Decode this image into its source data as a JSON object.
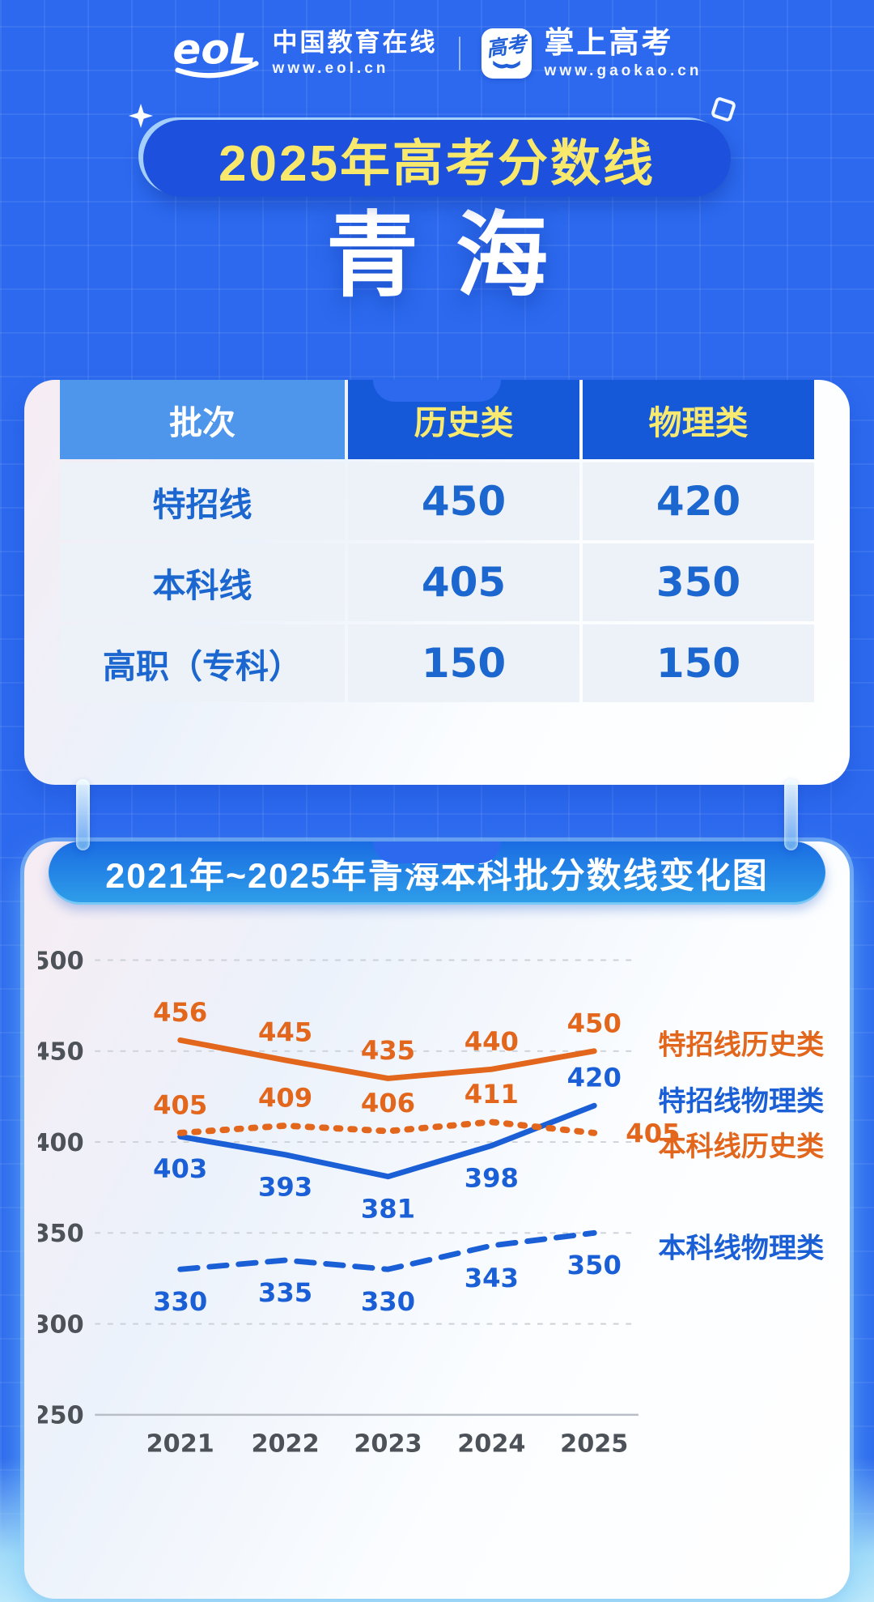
{
  "colors": {
    "page_bg": "#2c69ee",
    "banner_bg": "#1d50dc",
    "banner_text": "#f8e96d",
    "header_col_bg": "#1558d8",
    "header_col1_bg": "#4e95ec",
    "header_text_yellow": "#f8ea70",
    "cell_bg": "#edf2f9",
    "value_blue": "#1b66cf",
    "orange": "#e2661c",
    "blue": "#1a5fd6"
  },
  "header": {
    "eol": {
      "logo_text": "eoL",
      "name": "中国教育在线",
      "url": "www.eol.cn"
    },
    "gaokao": {
      "icon_text": "高考",
      "name": "掌上高考",
      "url": "www.gaokao.cn"
    }
  },
  "title_banner": {
    "text": "2025年高考分数线"
  },
  "province": {
    "text": "青海"
  },
  "score_table": {
    "columns": [
      "批次",
      "历史类",
      "物理类"
    ],
    "rows": [
      {
        "label": "特招线",
        "values": [
          "450",
          "420"
        ]
      },
      {
        "label": "本科线",
        "values": [
          "405",
          "350"
        ]
      },
      {
        "label": "高职（专科）",
        "values": [
          "150",
          "150"
        ]
      }
    ]
  },
  "chart_data": {
    "type": "line",
    "title": "2021年~2025年青海本科批分数线变化图",
    "x": [
      "2021",
      "2022",
      "2023",
      "2024",
      "2025"
    ],
    "yticks": [
      250,
      300,
      350,
      400,
      450,
      500
    ],
    "ylim": [
      250,
      500
    ],
    "grid": true,
    "legend_position": "right",
    "series": [
      {
        "name": "特招线历史类",
        "values": [
          456,
          445,
          435,
          440,
          450
        ],
        "color": "#e2661c",
        "style": "solid",
        "label_placement": [
          "above",
          "above",
          "above",
          "above",
          "above"
        ],
        "legend_dy": 4
      },
      {
        "name": "特招线物理类",
        "values": [
          403,
          393,
          381,
          398,
          420
        ],
        "color": "#1a5fd6",
        "style": "solid",
        "label_placement": [
          "below",
          "below",
          "below",
          "below",
          "above"
        ],
        "legend_dy": 6
      },
      {
        "name": "本科线历史类",
        "values": [
          405,
          409,
          406,
          411,
          405
        ],
        "color": "#e2661c",
        "style": "dotted",
        "label_placement": [
          "above",
          "above",
          "above",
          "above",
          "right"
        ],
        "legend_dy": 29
      },
      {
        "name": "本科线物理类",
        "values": [
          330,
          335,
          330,
          343,
          350
        ],
        "color": "#1a5fd6",
        "style": "dashed",
        "label_placement": [
          "below",
          "below",
          "below",
          "below",
          "below"
        ],
        "legend_dy": 31
      }
    ]
  }
}
